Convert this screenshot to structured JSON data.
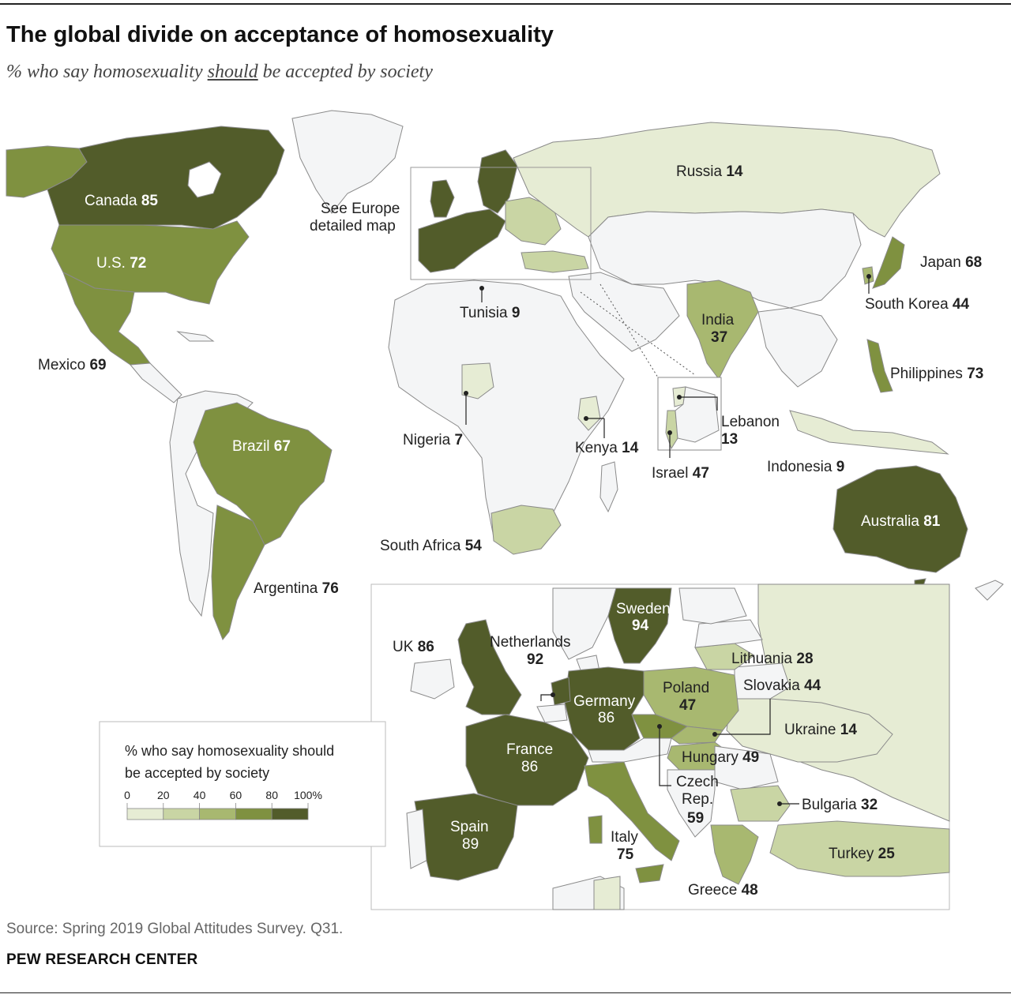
{
  "title": "The global divide on acceptance of homosexuality",
  "subtitle": {
    "pre": "% who say homosexuality ",
    "emph": "should",
    "post": " be accepted by society"
  },
  "source": "Spring 2019 Global Attitudes Survey. Q31.",
  "source_label": "Source: Spring 2019 Global Attitudes Survey. Q31.",
  "organization": "PEW RESEARCH CENTER",
  "europe_note": [
    "See Europe",
    "detailed map"
  ],
  "legend": {
    "title": [
      "% who say homosexuality should",
      "be accepted by society"
    ],
    "ticks": [
      "0",
      "20",
      "40",
      "60",
      "80",
      "100%"
    ],
    "colors": [
      "#e6ecd4",
      "#c9d5a4",
      "#a8b870",
      "#7f9140",
      "#525c2a"
    ]
  },
  "colors": {
    "no_data": "#f4f5f6",
    "border": "#8a8a8a",
    "c0_20": "#e6ecd4",
    "c20_40": "#c9d5a4",
    "c40_60": "#a8b870",
    "c60_80": "#7f9140",
    "c80_100": "#525c2a"
  },
  "countries": {
    "canada": {
      "name": "Canada",
      "value": "85"
    },
    "us": {
      "name": "U.S.",
      "value": "72"
    },
    "mexico": {
      "name": "Mexico",
      "value": "69"
    },
    "brazil": {
      "name": "Brazil",
      "value": "67"
    },
    "argentina": {
      "name": "Argentina",
      "value": "76"
    },
    "russia": {
      "name": "Russia",
      "value": "14"
    },
    "japan": {
      "name": "Japan",
      "value": "68"
    },
    "south_korea": {
      "name": "South Korea",
      "value": "44"
    },
    "india": {
      "name": "India",
      "value": "37"
    },
    "philippines": {
      "name": "Philippines",
      "value": "73"
    },
    "tunisia": {
      "name": "Tunisia",
      "value": "9"
    },
    "nigeria": {
      "name": "Nigeria",
      "value": "7"
    },
    "kenya": {
      "name": "Kenya",
      "value": "14"
    },
    "lebanon": {
      "name": "Lebanon",
      "value": "13"
    },
    "israel": {
      "name": "Israel",
      "value": "47"
    },
    "indonesia": {
      "name": "Indonesia",
      "value": "9"
    },
    "south_africa": {
      "name": "South Africa",
      "value": "54"
    },
    "australia": {
      "name": "Australia",
      "value": "81"
    },
    "uk": {
      "name": "UK",
      "value": "86"
    },
    "netherlands": {
      "name": "Netherlands",
      "value": "92"
    },
    "sweden": {
      "name": "Sweden",
      "value": "94"
    },
    "germany": {
      "name": "Germany",
      "value": "86"
    },
    "france": {
      "name": "France",
      "value": "86"
    },
    "spain": {
      "name": "Spain",
      "value": "89"
    },
    "italy": {
      "name": "Italy",
      "value": "75"
    },
    "poland": {
      "name": "Poland",
      "value": "47"
    },
    "lithuania": {
      "name": "Lithuania",
      "value": "28"
    },
    "slovakia": {
      "name": "Slovakia",
      "value": "44"
    },
    "ukraine": {
      "name": "Ukraine",
      "value": "14"
    },
    "hungary": {
      "name": "Hungary",
      "value": "49"
    },
    "czech_rep": {
      "name_line1": "Czech",
      "name_line2": "Rep.",
      "value": "59"
    },
    "bulgaria": {
      "name": "Bulgaria",
      "value": "32"
    },
    "turkey": {
      "name": "Turkey",
      "value": "25"
    },
    "greece": {
      "name": "Greece",
      "value": "48"
    }
  }
}
